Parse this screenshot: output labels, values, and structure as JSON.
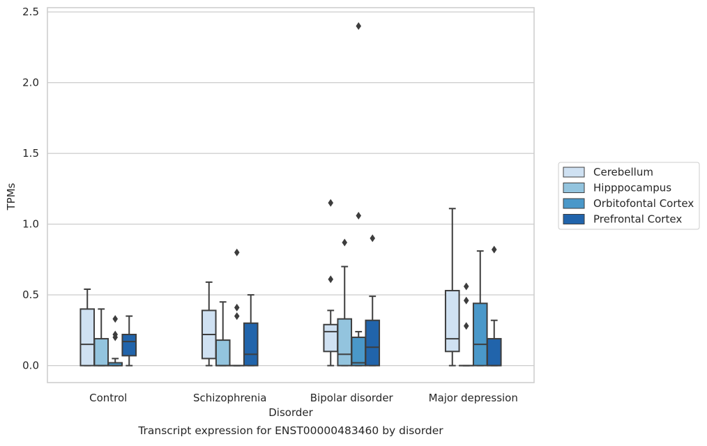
{
  "chart_data": {
    "type": "box",
    "caption": "Transcript expression for ENST00000483460 by disorder",
    "xlabel": "Disorder",
    "ylabel": "TPMs",
    "ylim": [
      -0.12,
      2.53
    ],
    "yticks": [
      0.0,
      0.5,
      1.0,
      1.5,
      2.0,
      2.5
    ],
    "ytick_labels": [
      "0.0",
      "0.5",
      "1.0",
      "1.5",
      "2.0",
      "2.5"
    ],
    "grid": "horizontal",
    "legend_position": "right",
    "categories": [
      "Control",
      "Schizophrenia",
      "Bipolar disorder",
      "Major depression"
    ],
    "series": [
      {
        "name": "Cerebellum",
        "color": "#cfe1f2",
        "boxes": [
          {
            "whislo": 0.0,
            "q1": 0.0,
            "med": 0.15,
            "q3": 0.4,
            "whishi": 0.54,
            "fliers": []
          },
          {
            "whislo": 0.0,
            "q1": 0.05,
            "med": 0.22,
            "q3": 0.39,
            "whishi": 0.59,
            "fliers": []
          },
          {
            "whislo": 0.0,
            "q1": 0.1,
            "med": 0.24,
            "q3": 0.29,
            "whishi": 0.39,
            "fliers": [
              0.61,
              1.15
            ]
          },
          {
            "whislo": 0.0,
            "q1": 0.1,
            "med": 0.19,
            "q3": 0.53,
            "whishi": 1.11,
            "fliers": []
          }
        ]
      },
      {
        "name": "Hipppocampus",
        "color": "#93c4de",
        "boxes": [
          {
            "whislo": 0.0,
            "q1": 0.0,
            "med": 0.0,
            "q3": 0.19,
            "whishi": 0.4,
            "fliers": []
          },
          {
            "whislo": 0.0,
            "q1": 0.0,
            "med": 0.0,
            "q3": 0.18,
            "whishi": 0.45,
            "fliers": []
          },
          {
            "whislo": 0.0,
            "q1": 0.0,
            "med": 0.08,
            "q3": 0.33,
            "whishi": 0.7,
            "fliers": [
              0.87
            ]
          },
          {
            "whislo": 0.0,
            "q1": 0.0,
            "med": 0.0,
            "q3": 0.0,
            "whishi": 0.0,
            "fliers": [
              0.28,
              0.46,
              0.56
            ]
          }
        ]
      },
      {
        "name": "Orbitofontal Cortex",
        "color": "#4a98c9",
        "boxes": [
          {
            "whislo": 0.0,
            "q1": 0.0,
            "med": 0.0,
            "q3": 0.02,
            "whishi": 0.05,
            "fliers": [
              0.2,
              0.22,
              0.33
            ]
          },
          {
            "whislo": 0.0,
            "q1": 0.0,
            "med": 0.0,
            "q3": 0.0,
            "whishi": 0.0,
            "fliers": [
              0.35,
              0.41,
              0.8
            ]
          },
          {
            "whislo": 0.0,
            "q1": 0.0,
            "med": 0.02,
            "q3": 0.2,
            "whishi": 0.24,
            "fliers": [
              1.06,
              2.4
            ]
          },
          {
            "whislo": 0.0,
            "q1": 0.0,
            "med": 0.15,
            "q3": 0.44,
            "whishi": 0.81,
            "fliers": []
          }
        ]
      },
      {
        "name": "Prefrontal Cortex",
        "color": "#2164ab",
        "boxes": [
          {
            "whislo": 0.0,
            "q1": 0.07,
            "med": 0.17,
            "q3": 0.22,
            "whishi": 0.35,
            "fliers": []
          },
          {
            "whislo": 0.0,
            "q1": 0.0,
            "med": 0.08,
            "q3": 0.3,
            "whishi": 0.5,
            "fliers": []
          },
          {
            "whislo": 0.0,
            "q1": 0.0,
            "med": 0.13,
            "q3": 0.32,
            "whishi": 0.49,
            "fliers": [
              0.9
            ]
          },
          {
            "whislo": 0.0,
            "q1": 0.0,
            "med": 0.0,
            "q3": 0.19,
            "whishi": 0.32,
            "fliers": [
              0.82
            ]
          }
        ]
      }
    ]
  }
}
